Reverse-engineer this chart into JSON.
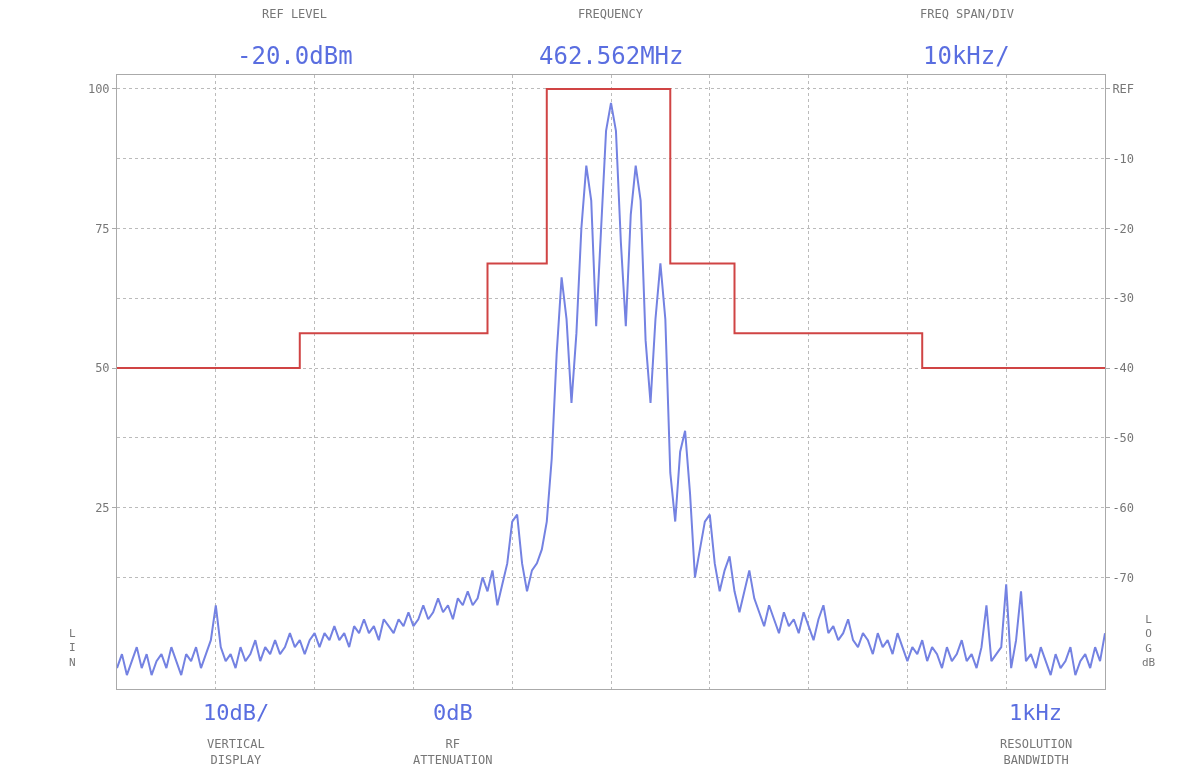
{
  "chart_data": {
    "type": "line",
    "categories": [
      null,
      null,
      null,
      null,
      null,
      null,
      null,
      null,
      null,
      null,
      null,
      null,
      null,
      null,
      null,
      null,
      null,
      null,
      null,
      null,
      null,
      null,
      null,
      null,
      null,
      null,
      null,
      null,
      null,
      null,
      null,
      null,
      null,
      null,
      null,
      null,
      null,
      null,
      null,
      null,
      null,
      null,
      null,
      null,
      null,
      null,
      null,
      null,
      null,
      null,
      null,
      null,
      null,
      null,
      null,
      null,
      null,
      null,
      null,
      null,
      null,
      null,
      null,
      null,
      null,
      null,
      null,
      null,
      null,
      null,
      null,
      null,
      null,
      null,
      null,
      null,
      null,
      null,
      null,
      null,
      null,
      null,
      null,
      null,
      null,
      null,
      null,
      null,
      null,
      null,
      null,
      null,
      null,
      null,
      null,
      null,
      null,
      null,
      null,
      null,
      null,
      null,
      null,
      null,
      null,
      null,
      null,
      null,
      null,
      null,
      null,
      null,
      null,
      null,
      null,
      null,
      null,
      null,
      null,
      null,
      null,
      null,
      null,
      null,
      null,
      null,
      null,
      null,
      null,
      null,
      null,
      null,
      null,
      null,
      null,
      null,
      null,
      null,
      null,
      null,
      null,
      null,
      null,
      null,
      null,
      null,
      null,
      null,
      null,
      null,
      null,
      null,
      null,
      null,
      null,
      null,
      null,
      null,
      null,
      null,
      null,
      null,
      null,
      null,
      null,
      null,
      null,
      null,
      null,
      null,
      null,
      null,
      null,
      null,
      null,
      null,
      null,
      null,
      null,
      null,
      null,
      null,
      null,
      null,
      null,
      null,
      null,
      null,
      null,
      null,
      null,
      null,
      null,
      null,
      null,
      null,
      null,
      null,
      null,
      null,
      null
    ],
    "series": [
      {
        "color": "#7482e2",
        "values": [
          -83,
          -81,
          -84,
          -82,
          -80,
          -83,
          -81,
          -84,
          -82,
          -81,
          -83,
          -80,
          -82,
          -84,
          -81,
          -82,
          -80,
          -83,
          -81,
          -79,
          -74,
          -80,
          -82,
          -81,
          -83,
          -80,
          -82,
          -81,
          -79,
          -82,
          -80,
          -81,
          -79,
          -81,
          -80,
          -78,
          -80,
          -79,
          -81,
          -79,
          -78,
          -80,
          -78,
          -79,
          -77,
          -79,
          -78,
          -80,
          -77,
          -78,
          -76,
          -78,
          -77,
          -79,
          -76,
          -77,
          -78,
          -76,
          -77,
          -75,
          -77,
          -76,
          -74,
          -76,
          -75,
          -73,
          -75,
          -74,
          -76,
          -73,
          -74,
          -72,
          -74,
          -73,
          -70,
          -72,
          -69,
          -74,
          -71,
          -68,
          -62,
          -61,
          -68,
          -72,
          -69,
          -68,
          -66,
          -62,
          -53,
          -38,
          -27,
          -33,
          -45,
          -35,
          -20,
          -11,
          -16,
          -34,
          -20,
          -6,
          -2,
          -6,
          -22,
          -34,
          -18,
          -11,
          -16,
          -36,
          -45,
          -33,
          -25,
          -33,
          -55,
          -62,
          -52,
          -49,
          -58,
          -70,
          -66,
          -62,
          -61,
          -68,
          -72,
          -69,
          -67,
          -72,
          -75,
          -72,
          -69,
          -73,
          -75,
          -77,
          -74,
          -76,
          -78,
          -75,
          -77,
          -76,
          -78,
          -75,
          -77,
          -79,
          -76,
          -74,
          -78,
          -77,
          -79,
          -78,
          -76,
          -79,
          -80,
          -78,
          -79,
          -81,
          -78,
          -80,
          -79,
          -81,
          -78,
          -80,
          -82,
          -80,
          -81,
          -79,
          -82,
          -80,
          -81,
          -83,
          -80,
          -82,
          -81,
          -79,
          -82,
          -81,
          -83,
          -80,
          -74,
          -82,
          -81,
          -80,
          -71,
          -83,
          -79,
          -72,
          -82,
          -81,
          -83,
          -80,
          -82,
          -84,
          -81,
          -83,
          -82,
          -80,
          -84,
          -82,
          -81,
          -83,
          -80,
          -82,
          -78
        ]
      },
      {
        "type": "step",
        "color": "#d04444",
        "values": [
          -40,
          -40,
          -40,
          -40,
          -40,
          -40,
          -40,
          -40,
          -40,
          -40,
          -40,
          -40,
          -40,
          -40,
          -40,
          -40,
          -40,
          -40,
          -40,
          -40,
          -40,
          -40,
          -40,
          -40,
          -40,
          -40,
          -40,
          -40,
          -40,
          -40,
          -40,
          -40,
          -40,
          -40,
          -40,
          -40,
          -40,
          -35,
          -35,
          -35,
          -35,
          -35,
          -35,
          -35,
          -35,
          -35,
          -35,
          -35,
          -35,
          -35,
          -35,
          -35,
          -35,
          -35,
          -35,
          -35,
          -35,
          -35,
          -35,
          -35,
          -35,
          -35,
          -35,
          -35,
          -35,
          -35,
          -35,
          -35,
          -35,
          -35,
          -35,
          -35,
          -35,
          -35,
          -35,
          -25,
          -25,
          -25,
          -25,
          -25,
          -25,
          -25,
          -25,
          -25,
          -25,
          -25,
          -25,
          0,
          0,
          0,
          0,
          0,
          0,
          0,
          0,
          0,
          0,
          0,
          0,
          0,
          0,
          0,
          0,
          0,
          0,
          0,
          0,
          0,
          0,
          0,
          0,
          0,
          -25,
          -25,
          -25,
          -25,
          -25,
          -25,
          -25,
          -25,
          -25,
          -25,
          -25,
          -25,
          -25,
          -35,
          -35,
          -35,
          -35,
          -35,
          -35,
          -35,
          -35,
          -35,
          -35,
          -35,
          -35,
          -35,
          -35,
          -35,
          -35,
          -35,
          -35,
          -35,
          -35,
          -35,
          -35,
          -35,
          -35,
          -35,
          -35,
          -35,
          -35,
          -35,
          -35,
          -35,
          -35,
          -35,
          -35,
          -35,
          -35,
          -35,
          -35,
          -40,
          -40,
          -40,
          -40,
          -40,
          -40,
          -40,
          -40,
          -40,
          -40,
          -40,
          -40,
          -40,
          -40,
          -40,
          -40,
          -40,
          -40,
          -40,
          -40,
          -40,
          -40,
          -40,
          -40,
          -40,
          -40,
          -40,
          -40,
          -40,
          -40,
          -40,
          -40,
          -40,
          -40,
          -40,
          -40,
          -40,
          -40
        ]
      }
    ],
    "ylim": [
      -86,
      2
    ],
    "yticks": [
      {
        "value": 0,
        "label": "REF"
      },
      -10,
      -20,
      -30,
      -40,
      -50,
      -60,
      -70
    ],
    "y2lim": [
      -7.5,
      102.5
    ],
    "y2ticks": [
      100,
      75,
      50,
      25
    ],
    "grid": true,
    "tick_labels": "y",
    "annotations": [
      "REF LEVEL",
      "-20.0dBm",
      "FREQUENCY",
      "462.562MHz",
      "FREQ SPAN/DIV",
      "10kHz/",
      "10dB/",
      "VERTICAL DISPLAY",
      "0dB",
      "RF ATTENUATION",
      "1kHz",
      "RESOLUTION BANDWIDTH",
      "LIN",
      "LOG dB"
    ]
  }
}
